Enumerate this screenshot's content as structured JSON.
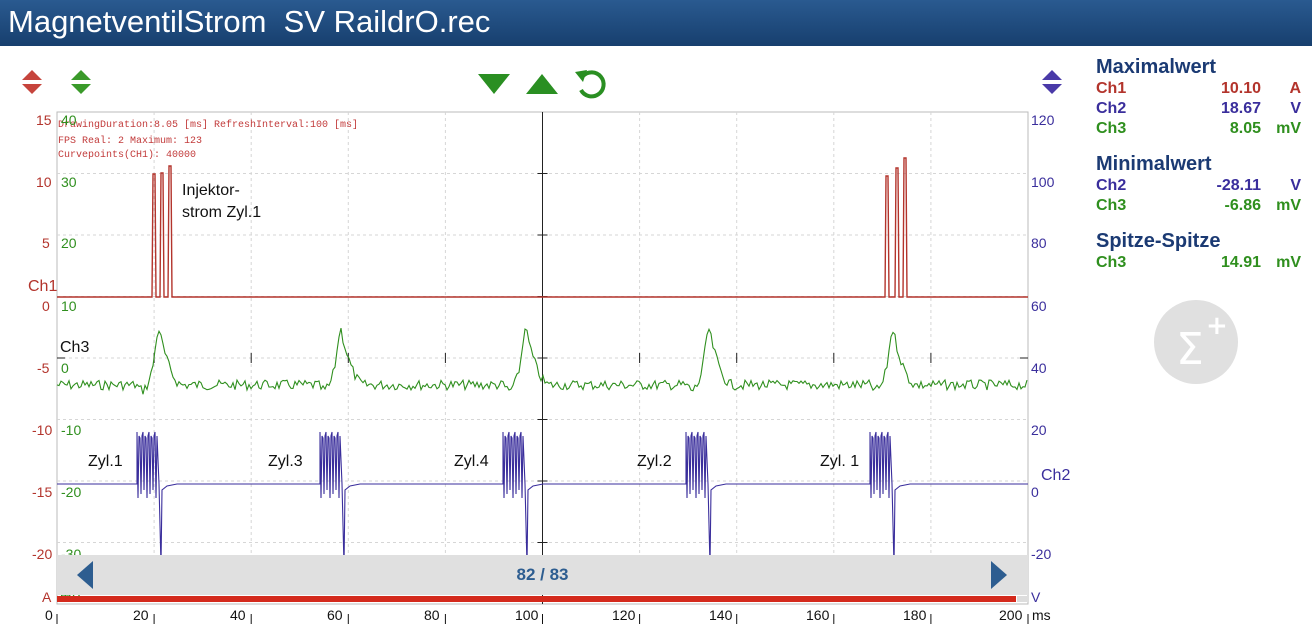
{
  "title": "MagnetventilStrom  SV RaildrO.rec",
  "colors": {
    "ch1": "#b3342c",
    "ch2": "#3a2e9c",
    "ch3": "#2f8f1e",
    "title_bg": "#1f4a7d",
    "nav_text": "#2d5d90"
  },
  "toolbar": {
    "ch1_scale_icon": "ch1-scale-arrows-icon",
    "ch3_scale_icon": "ch3-scale-arrows-icon",
    "zoom_out_icon": "triangle-down-icon",
    "zoom_in_icon": "triangle-up-icon",
    "reset_icon": "refresh-icon",
    "ch2_scale_icon": "ch2-scale-arrows-icon"
  },
  "info": {
    "line1": "DrawingDuration:8.05 [ms]  RefreshInterval:100 [ms]",
    "line2": "FPS Real: 2  Maximum: 123",
    "line3": "Curvepoints(CH1): 40000"
  },
  "axes": {
    "ch1_ticks": [
      "15",
      "10",
      "5",
      "0",
      "-5",
      "-10",
      "-15",
      "-20"
    ],
    "ch1_unit": "A",
    "ch1_label": "Ch1",
    "ch3_ticks": [
      "40",
      "30",
      "20",
      "10",
      "0",
      "-10",
      "-20",
      "-30"
    ],
    "ch3_unit": "mV",
    "ch3_label": "Ch3",
    "ch2_ticks": [
      "120",
      "100",
      "80",
      "60",
      "40",
      "20",
      "0",
      "-20"
    ],
    "ch2_unit": "V",
    "ch2_label": "Ch2",
    "x_ticks": [
      "0",
      "20",
      "40",
      "60",
      "80",
      "100",
      "120",
      "140",
      "160",
      "180",
      "200"
    ],
    "x_unit": "ms"
  },
  "annotations": {
    "injector_1": "Injektor-",
    "injector_2": "strom Zyl.1",
    "cylinders": [
      "Zyl.1",
      "Zyl.3",
      "Zyl.4",
      "Zyl.2",
      "Zyl. 1"
    ]
  },
  "panel": {
    "max_title": "Maximalwert",
    "max_rows": [
      {
        "ch": "Ch1",
        "value": "10.10",
        "unit": "A"
      },
      {
        "ch": "Ch2",
        "value": "18.67",
        "unit": "V"
      },
      {
        "ch": "Ch3",
        "value": "8.05",
        "unit": "mV"
      }
    ],
    "min_title": "Minimalwert",
    "min_rows": [
      {
        "ch": "Ch2",
        "value": "-28.11",
        "unit": "V"
      },
      {
        "ch": "Ch3",
        "value": "-6.86",
        "unit": "mV"
      }
    ],
    "p2p_title": "Spitze-Spitze",
    "p2p_rows": [
      {
        "ch": "Ch3",
        "value": "14.91",
        "unit": "mV"
      }
    ],
    "sigma_icon": "sigma-plus-icon"
  },
  "navigator": {
    "counter": "82 / 83",
    "prev_icon": "triangle-left-icon",
    "next_icon": "triangle-right-icon",
    "progress": 0.988
  }
}
